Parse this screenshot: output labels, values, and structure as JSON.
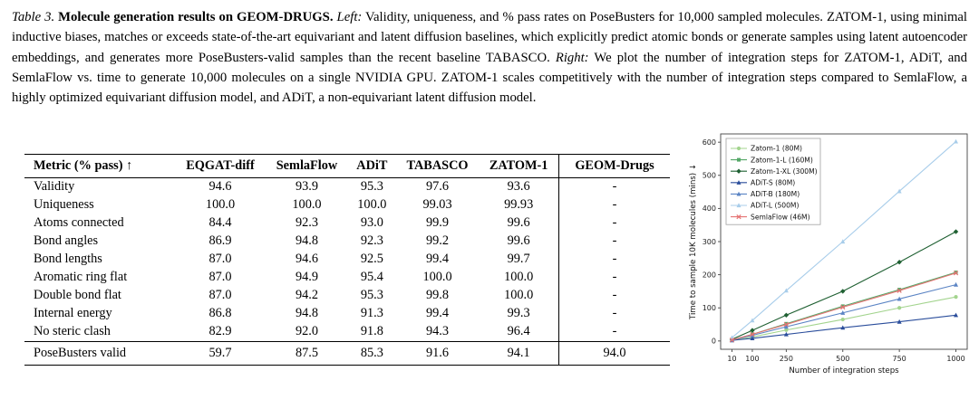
{
  "caption": {
    "label": "Table 3.",
    "title": "Molecule generation results on GEOM-DRUGS.",
    "left_marker": "Left:",
    "left_text": "Validity, uniqueness, and % pass rates on PoseBusters for 10,000 sampled molecules. ZATOM-1, using minimal inductive biases, matches or exceeds state-of-the-art equivariant and latent diffusion baselines, which explicitly predict atomic bonds or generate samples using latent autoencoder embeddings, and generates more PoseBusters-valid samples than the recent baseline TABASCO.",
    "right_marker": "Right:",
    "right_text": "We plot the number of integration steps for ZATOM-1, ADiT, and SemlaFlow vs. time to generate 10,000 molecules on a single NVIDIA GPU. ZATOM-1 scales competitively with the number of integration steps compared to SemlaFlow, a highly optimized equivariant diffusion model, and ADiT, a non-equivariant latent diffusion model."
  },
  "table": {
    "headers": [
      "Metric (% pass) ↑",
      "EQGAT-diff",
      "SemlaFlow",
      "ADiT",
      "TABASCO",
      "ZATOM-1",
      "GEOM-Drugs"
    ],
    "rows": [
      [
        "Validity",
        "94.6",
        "93.9",
        "95.3",
        "97.6",
        "93.6",
        "-"
      ],
      [
        "Uniqueness",
        "100.0",
        "100.0",
        "100.0",
        "99.03",
        "99.93",
        "-"
      ],
      [
        "Atoms connected",
        "84.4",
        "92.3",
        "93.0",
        "99.9",
        "99.6",
        "-"
      ],
      [
        "Bond angles",
        "86.9",
        "94.8",
        "92.3",
        "99.2",
        "99.6",
        "-"
      ],
      [
        "Bond lengths",
        "87.0",
        "94.6",
        "92.5",
        "99.4",
        "99.7",
        "-"
      ],
      [
        "Aromatic ring flat",
        "87.0",
        "94.9",
        "95.4",
        "100.0",
        "100.0",
        "-"
      ],
      [
        "Double bond flat",
        "87.0",
        "94.2",
        "95.3",
        "99.8",
        "100.0",
        "-"
      ],
      [
        "Internal energy",
        "86.8",
        "94.8",
        "91.3",
        "99.4",
        "99.3",
        "-"
      ],
      [
        "No steric clash",
        "82.9",
        "92.0",
        "91.8",
        "94.3",
        "96.4",
        "-"
      ]
    ],
    "footer": [
      "PoseBusters valid",
      "59.7",
      "87.5",
      "85.3",
      "91.6",
      "94.1",
      "94.0"
    ]
  },
  "chart_data": {
    "type": "line",
    "title": "",
    "xlabel": "Number of integration steps",
    "ylabel": "Time to sample 10K molecules (mins) ↓",
    "x": [
      10,
      100,
      250,
      500,
      750,
      1000
    ],
    "xticks": [
      10,
      100,
      250,
      500,
      750,
      1000
    ],
    "yticks": [
      0,
      100,
      200,
      300,
      400,
      500,
      600
    ],
    "ylim": [
      0,
      620
    ],
    "grid": false,
    "legend_position": "upper left",
    "series": [
      {
        "name": "Zatom-1 (80M)",
        "color": "#a3d48e",
        "marker": "circle",
        "values": [
          2,
          12,
          33,
          65,
          100,
          133
        ]
      },
      {
        "name": "Zatom-1-L (160M)",
        "color": "#55a868",
        "marker": "square",
        "values": [
          3,
          20,
          52,
          105,
          155,
          207
        ]
      },
      {
        "name": "Zatom-1-XL (300M)",
        "color": "#1f6032",
        "marker": "diamond",
        "values": [
          5,
          32,
          78,
          150,
          238,
          330
        ]
      },
      {
        "name": "ADiT-S (80M)",
        "color": "#2a4d9b",
        "marker": "triangle",
        "values": [
          2,
          8,
          20,
          40,
          58,
          78
        ]
      },
      {
        "name": "ADiT-B (180M)",
        "color": "#5b84c4",
        "marker": "triangle",
        "values": [
          3,
          17,
          43,
          85,
          127,
          170
        ]
      },
      {
        "name": "ADiT-L (500M)",
        "color": "#a8cdea",
        "marker": "triangle",
        "values": [
          10,
          62,
          152,
          300,
          452,
          602
        ]
      },
      {
        "name": "SemlaFlow (46M)",
        "color": "#e57373",
        "marker": "x",
        "values": [
          3,
          20,
          50,
          102,
          152,
          205
        ]
      }
    ]
  }
}
